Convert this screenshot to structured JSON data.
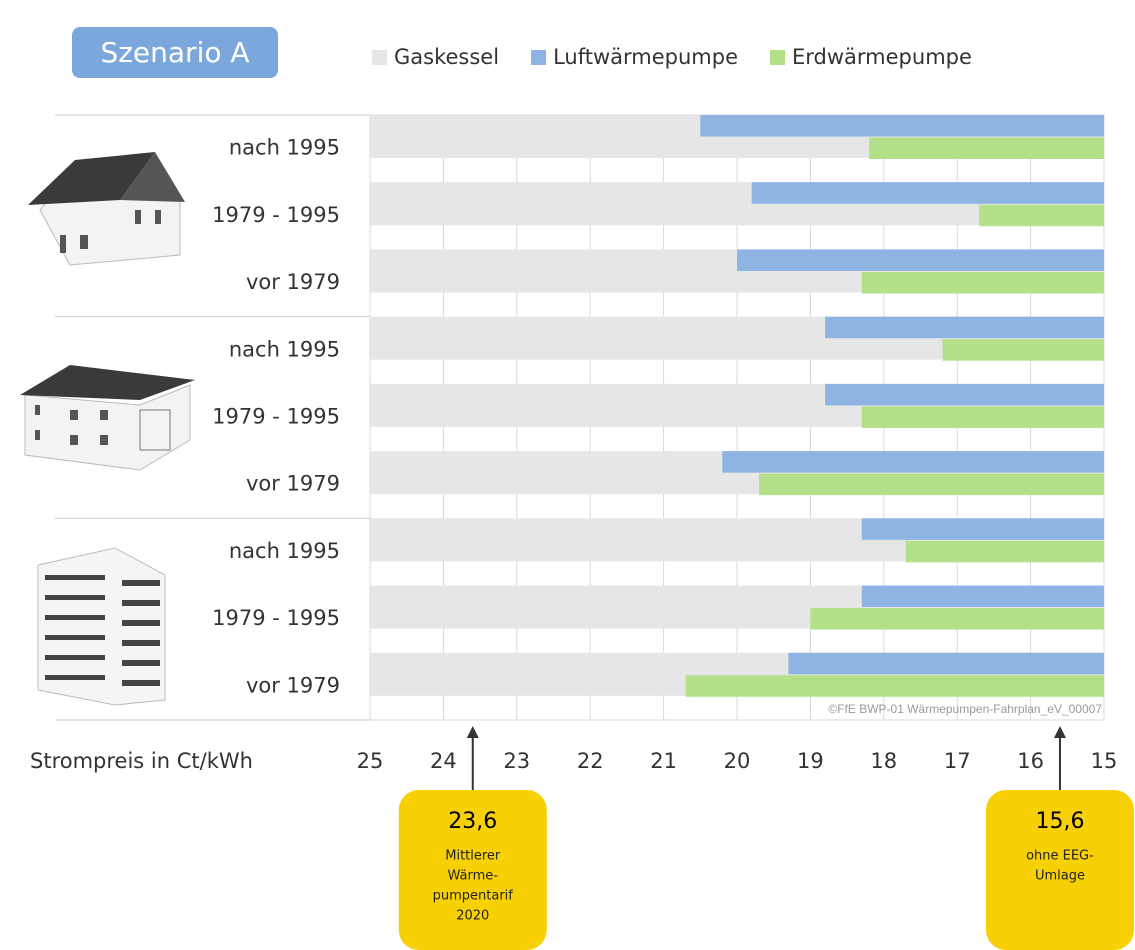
{
  "chart_data": {
    "type": "bar",
    "orientation": "horizontal",
    "title": "Szenario A",
    "x_label": "Strompreis in Ct/kWh",
    "categories": [
      "nach 1995",
      "1979 - 1995",
      "vor 1979",
      "nach 1995",
      "1979 - 1995",
      "vor 1979",
      "nach 1995",
      "1979 - 1995",
      "vor 1979"
    ],
    "series": [
      {
        "name": "Gaskessel",
        "color": "#e6e6e6",
        "values": [
          25,
          25,
          25,
          25,
          25,
          25,
          25,
          25,
          25
        ]
      },
      {
        "name": "Luftwärmepumpe",
        "color": "#8db4e2",
        "values": [
          20.5,
          19.8,
          20.0,
          18.8,
          18.8,
          20.2,
          18.3,
          18.3,
          19.3
        ]
      },
      {
        "name": "Erdwärmepumpe",
        "color": "#b5e08a",
        "values": [
          18.2,
          16.7,
          18.3,
          17.2,
          18.3,
          19.7,
          17.7,
          19.0,
          20.7
        ]
      }
    ],
    "xlim": [
      25,
      15
    ],
    "xticks": [
      25,
      24,
      23,
      22,
      21,
      20,
      19,
      18,
      17,
      16,
      15
    ],
    "grid": true,
    "source": "©FfE BWP-01 Wärmepumpen-Fahrplan_eV_00007",
    "annotations": [
      {
        "value": 23.6,
        "label": "23,6",
        "lines": [
          "Mittlerer",
          "Wärme-",
          "pumpentarif",
          "2020"
        ]
      },
      {
        "value": 15.6,
        "label": "15,6",
        "lines": [
          "ohne EEG-",
          "Umlage"
        ]
      }
    ]
  }
}
